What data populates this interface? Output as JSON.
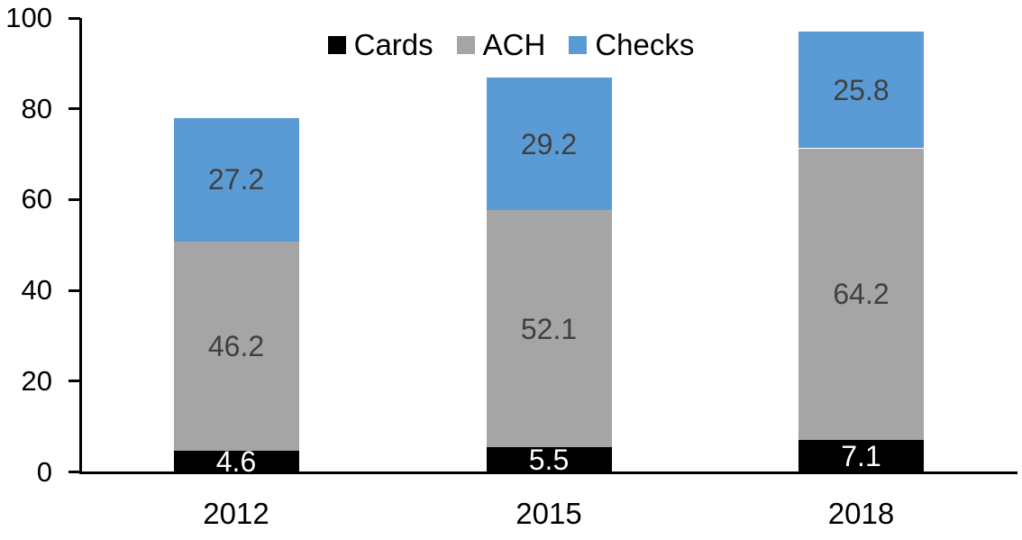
{
  "chart_data": {
    "type": "bar",
    "stacked": true,
    "title": "",
    "categories": [
      "2012",
      "2015",
      "2018"
    ],
    "series": [
      {
        "name": "Cards",
        "color": "#000000",
        "label_color": "#ffffff",
        "values": [
          4.6,
          5.5,
          7.1
        ]
      },
      {
        "name": "ACH",
        "color": "#a5a5a5",
        "label_color": "#404040",
        "values": [
          46.2,
          52.1,
          64.2
        ]
      },
      {
        "name": "Checks",
        "color": "#5b9bd5",
        "label_color": "#404040",
        "values": [
          27.2,
          29.2,
          25.8
        ]
      }
    ],
    "ylim": [
      0,
      100
    ],
    "yticks": [
      0,
      20,
      40,
      60,
      80,
      100
    ],
    "grid": false,
    "legend_position": "top-center",
    "legend_order": [
      "Cards",
      "ACH",
      "Checks"
    ],
    "axis_color": "#000000",
    "background": "#ffffff"
  }
}
